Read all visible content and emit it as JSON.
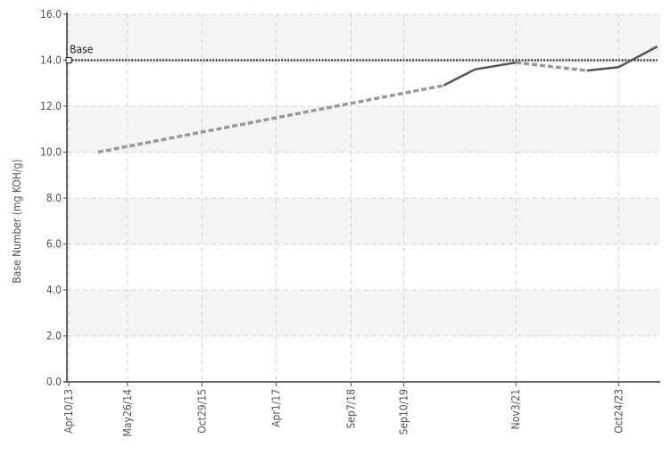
{
  "chart_data": {
    "type": "line",
    "title": "",
    "xlabel": "",
    "ylabel": "Base Number (mg KOH/g)",
    "ylim": [
      0,
      16
    ],
    "y_ticks": [
      "0.0",
      "2.0",
      "4.0",
      "6.0",
      "8.0",
      "10.0",
      "12.0",
      "14.0",
      "16.0"
    ],
    "x_range": [
      "2013-03-28",
      "2024-08-10"
    ],
    "x_ticks": [
      {
        "date": "2013-04-10",
        "label": "Apr10/13"
      },
      {
        "date": "2014-05-26",
        "label": "May26/14"
      },
      {
        "date": "2015-10-29",
        "label": "Oct29/15"
      },
      {
        "date": "2017-04-01",
        "label": "Apr1/17"
      },
      {
        "date": "2018-09-07",
        "label": "Sep7/18"
      },
      {
        "date": "2019-09-10",
        "label": "Sep10/19"
      },
      {
        "date": "2021-11-03",
        "label": "Nov3/21"
      },
      {
        "date": "2023-10-24",
        "label": "Oct24/23"
      }
    ],
    "grid": true,
    "series": [
      {
        "name": "Base",
        "style": "dotted",
        "color": "#444444",
        "points": [
          {
            "x": "2013-04-10",
            "y": 14.0
          },
          {
            "x": "2024-07-20",
            "y": 14.0
          }
        ]
      },
      {
        "style": "dashed",
        "color": "#999999",
        "points": [
          {
            "x": "2013-11-01",
            "y": 10.0
          },
          {
            "x": "2020-06-15",
            "y": 12.9
          }
        ]
      },
      {
        "style": "solid",
        "color": "#555555",
        "points": [
          {
            "x": "2020-06-15",
            "y": 12.9
          },
          {
            "x": "2021-01-20",
            "y": 13.6
          },
          {
            "x": "2021-11-03",
            "y": 13.9
          }
        ]
      },
      {
        "style": "dashed",
        "color": "#999999",
        "points": [
          {
            "x": "2021-11-03",
            "y": 13.9
          },
          {
            "x": "2023-03-15",
            "y": 13.55
          }
        ]
      },
      {
        "style": "solid",
        "color": "#555555",
        "points": [
          {
            "x": "2023-03-15",
            "y": 13.55
          },
          {
            "x": "2023-10-24",
            "y": 13.7
          },
          {
            "x": "2024-07-20",
            "y": 14.6
          }
        ]
      }
    ]
  }
}
